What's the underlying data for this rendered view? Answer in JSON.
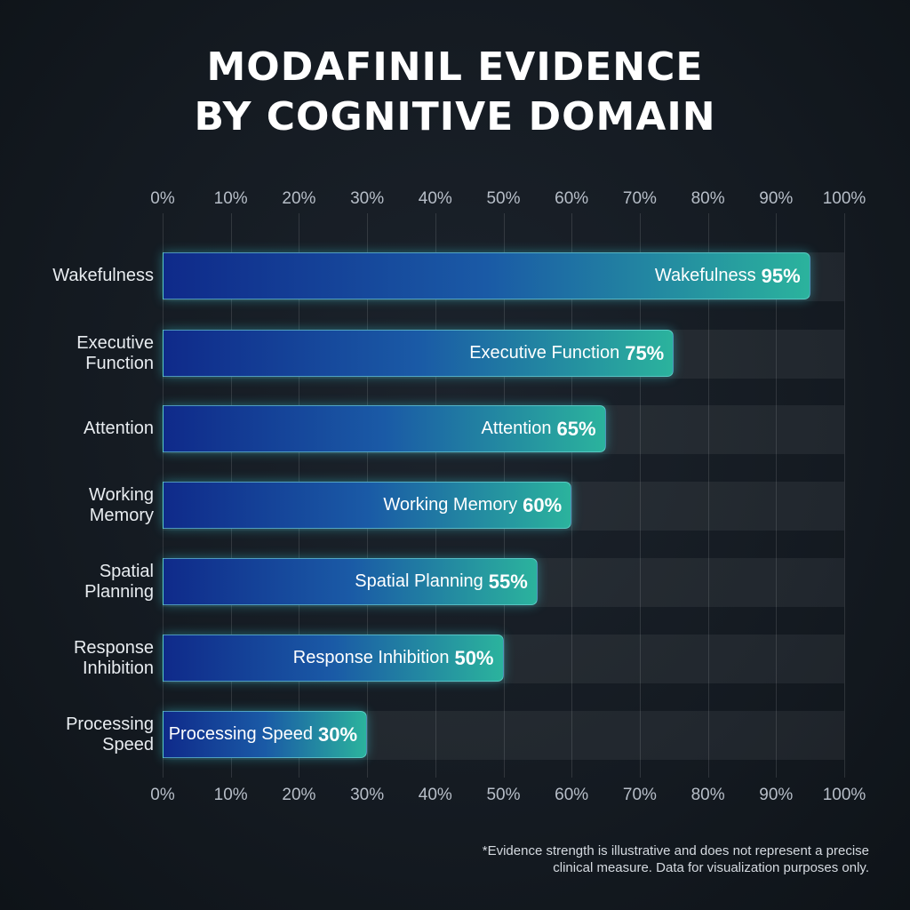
{
  "chart_data": {
    "type": "bar",
    "orientation": "horizontal",
    "title_lines": [
      "MODAFINIL EVIDENCE",
      "BY COGNITIVE DOMAIN"
    ],
    "categories": [
      "Wakefulness",
      "Executive Function",
      "Attention",
      "Working Memory",
      "Spatial Planning",
      "Response Inhibition",
      "Processing Speed"
    ],
    "values": [
      95,
      75,
      65,
      60,
      55,
      50,
      30
    ],
    "xlim": [
      0,
      100
    ],
    "tick_labels": [
      "0%",
      "10%",
      "20%",
      "30%",
      "40%",
      "50%",
      "60%",
      "70%",
      "80%",
      "90%",
      "100%"
    ],
    "grid": true,
    "colors": {
      "bar_start": "#0f2a8a",
      "bar_end": "#2bb39d",
      "background": "#141a21"
    },
    "footnote": "*Evidence strength is illustrative and does not represent a precise clinical measure. Data for visualization purposes only."
  }
}
